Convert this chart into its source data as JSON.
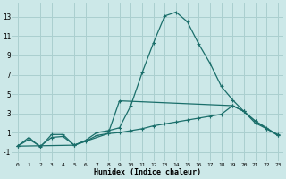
{
  "xlabel": "Humidex (Indice chaleur)",
  "background_color": "#cce8e8",
  "grid_color": "#aacfcf",
  "line_color": "#1a6e6a",
  "xlim": [
    -0.5,
    23.5
  ],
  "ylim": [
    -2.0,
    14.5
  ],
  "xticks": [
    0,
    1,
    2,
    3,
    4,
    5,
    6,
    7,
    8,
    9,
    10,
    11,
    12,
    13,
    14,
    15,
    16,
    17,
    18,
    19,
    20,
    21,
    22,
    23
  ],
  "yticks": [
    -1,
    1,
    3,
    5,
    7,
    9,
    11,
    13
  ],
  "curve1_x": [
    0,
    1,
    2,
    3,
    4,
    5,
    6,
    7,
    8,
    9,
    10,
    11,
    12,
    13,
    14,
    15,
    16,
    17,
    18,
    19,
    20,
    21,
    22,
    23
  ],
  "curve1_y": [
    -0.4,
    0.5,
    -0.5,
    0.8,
    0.8,
    -0.3,
    0.2,
    1.0,
    1.2,
    1.5,
    3.8,
    7.2,
    10.3,
    13.1,
    13.5,
    12.5,
    10.2,
    8.2,
    5.8,
    4.4,
    3.2,
    2.0,
    1.4,
    0.8
  ],
  "curve2_x": [
    0,
    1,
    2,
    3,
    4,
    5,
    6,
    7,
    8,
    9,
    10,
    11,
    12,
    13,
    14,
    15,
    16,
    17,
    18,
    19,
    20,
    21,
    22,
    23
  ],
  "curve2_y": [
    -0.4,
    0.3,
    -0.4,
    0.5,
    0.6,
    -0.3,
    0.1,
    0.7,
    0.9,
    1.0,
    1.2,
    1.4,
    1.7,
    1.9,
    2.1,
    2.3,
    2.5,
    2.7,
    2.9,
    3.8,
    3.2,
    2.2,
    1.5,
    0.7
  ],
  "curve3_x": [
    0,
    5,
    8,
    9,
    19,
    20,
    21,
    22,
    23
  ],
  "curve3_y": [
    -0.4,
    -0.3,
    0.9,
    4.3,
    3.8,
    3.2,
    2.2,
    1.4,
    0.7
  ]
}
